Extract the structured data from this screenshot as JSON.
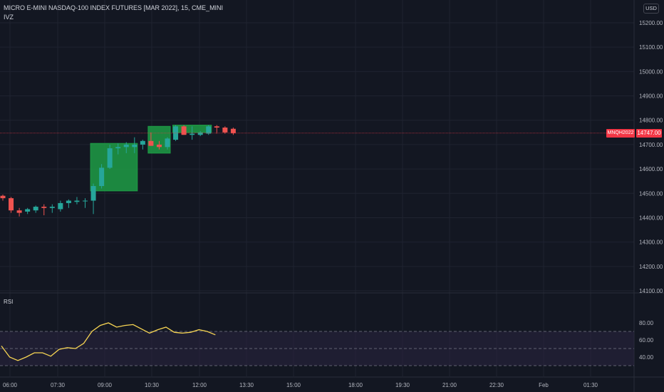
{
  "header": {
    "title": "MICRO E-MINI NASDAQ-100 INDEX FUTURES [MAR 2022], 15, CME_MINI",
    "indicator_label": "IVZ"
  },
  "currency_button": "USD",
  "last_price": "14747.00",
  "symbol_tag": "MNQH2022",
  "rsi_label": "RSI",
  "colors": {
    "background": "#131722",
    "grid": "#1f2330",
    "up": "#26a69a",
    "down": "#ef5350",
    "zone": "#1e9c45",
    "rsi_line": "#f7d553",
    "rsi_band": "#2a2540",
    "price_line": "#f23645"
  },
  "chart_data": [
    {
      "type": "candlestick",
      "ylim": [
        14100,
        15300
      ],
      "y_ticks": [
        "15200.00",
        "15100.00",
        "15000.00",
        "14900.00",
        "14800.00",
        "14700.00",
        "14600.00",
        "14500.00",
        "14400.00",
        "14300.00",
        "14200.00",
        "14100.00"
      ],
      "x_ticks": [
        "06:00",
        "07:30",
        "09:00",
        "10:30",
        "12:00",
        "13:30",
        "15:00",
        "18:00",
        "19:30",
        "21:00",
        "22:30",
        "Feb",
        "01:30"
      ],
      "candles": [
        {
          "o": 14490,
          "h": 14495,
          "l": 14470,
          "c": 14480
        },
        {
          "o": 14480,
          "h": 14485,
          "l": 14420,
          "c": 14430
        },
        {
          "o": 14430,
          "h": 14440,
          "l": 14405,
          "c": 14420
        },
        {
          "o": 14425,
          "h": 14440,
          "l": 14415,
          "c": 14435
        },
        {
          "o": 14430,
          "h": 14450,
          "l": 14420,
          "c": 14445
        },
        {
          "o": 14445,
          "h": 14455,
          "l": 14410,
          "c": 14440
        },
        {
          "o": 14440,
          "h": 14455,
          "l": 14420,
          "c": 14445
        },
        {
          "o": 14435,
          "h": 14470,
          "l": 14425,
          "c": 14460
        },
        {
          "o": 14460,
          "h": 14475,
          "l": 14440,
          "c": 14470
        },
        {
          "o": 14465,
          "h": 14485,
          "l": 14455,
          "c": 14470
        },
        {
          "o": 14470,
          "h": 14480,
          "l": 14440,
          "c": 14470
        },
        {
          "o": 14470,
          "h": 14540,
          "l": 14415,
          "c": 14530
        },
        {
          "o": 14530,
          "h": 14620,
          "l": 14520,
          "c": 14605
        },
        {
          "o": 14605,
          "h": 14700,
          "l": 14600,
          "c": 14685
        },
        {
          "o": 14685,
          "h": 14705,
          "l": 14660,
          "c": 14690
        },
        {
          "o": 14690,
          "h": 14710,
          "l": 14665,
          "c": 14700
        },
        {
          "o": 14690,
          "h": 14730,
          "l": 14665,
          "c": 14700
        },
        {
          "o": 14700,
          "h": 14720,
          "l": 14680,
          "c": 14715
        },
        {
          "o": 14715,
          "h": 14750,
          "l": 14695,
          "c": 14695
        },
        {
          "o": 14700,
          "h": 14715,
          "l": 14680,
          "c": 14690
        },
        {
          "o": 14690,
          "h": 14730,
          "l": 14680,
          "c": 14725
        },
        {
          "o": 14720,
          "h": 14780,
          "l": 14715,
          "c": 14775
        },
        {
          "o": 14775,
          "h": 14780,
          "l": 14740,
          "c": 14740
        },
        {
          "o": 14740,
          "h": 14775,
          "l": 14720,
          "c": 14745
        },
        {
          "o": 14740,
          "h": 14755,
          "l": 14735,
          "c": 14750
        },
        {
          "o": 14745,
          "h": 14780,
          "l": 14740,
          "c": 14775
        },
        {
          "o": 14775,
          "h": 14780,
          "l": 14745,
          "c": 14770
        },
        {
          "o": 14770,
          "h": 14775,
          "l": 14745,
          "c": 14750
        },
        {
          "o": 14765,
          "h": 14770,
          "l": 14740,
          "c": 14747
        }
      ],
      "zones": [
        {
          "x_from_candle": 11,
          "x_to_candle": 16,
          "y_from": 14510,
          "y_to": 14705
        },
        {
          "x_from_candle": 18,
          "x_to_candle": 20,
          "y_from": 14665,
          "y_to": 14775
        },
        {
          "x_from_candle": 21,
          "x_to_candle": 25,
          "y_from": 14750,
          "y_to": 14780
        }
      ],
      "last_price_value": 14747
    },
    {
      "type": "line",
      "name": "RSI",
      "ylim": [
        25,
        88
      ],
      "y_ticks": [
        "80.00",
        "60.00",
        "40.00"
      ],
      "bands": [
        30,
        50,
        70
      ],
      "values": [
        53,
        40,
        36,
        40,
        45,
        45,
        41,
        49,
        51,
        50,
        56,
        70,
        77,
        80,
        75,
        77,
        78,
        73,
        68,
        72,
        75,
        69,
        68,
        69,
        72,
        70,
        66
      ]
    }
  ]
}
